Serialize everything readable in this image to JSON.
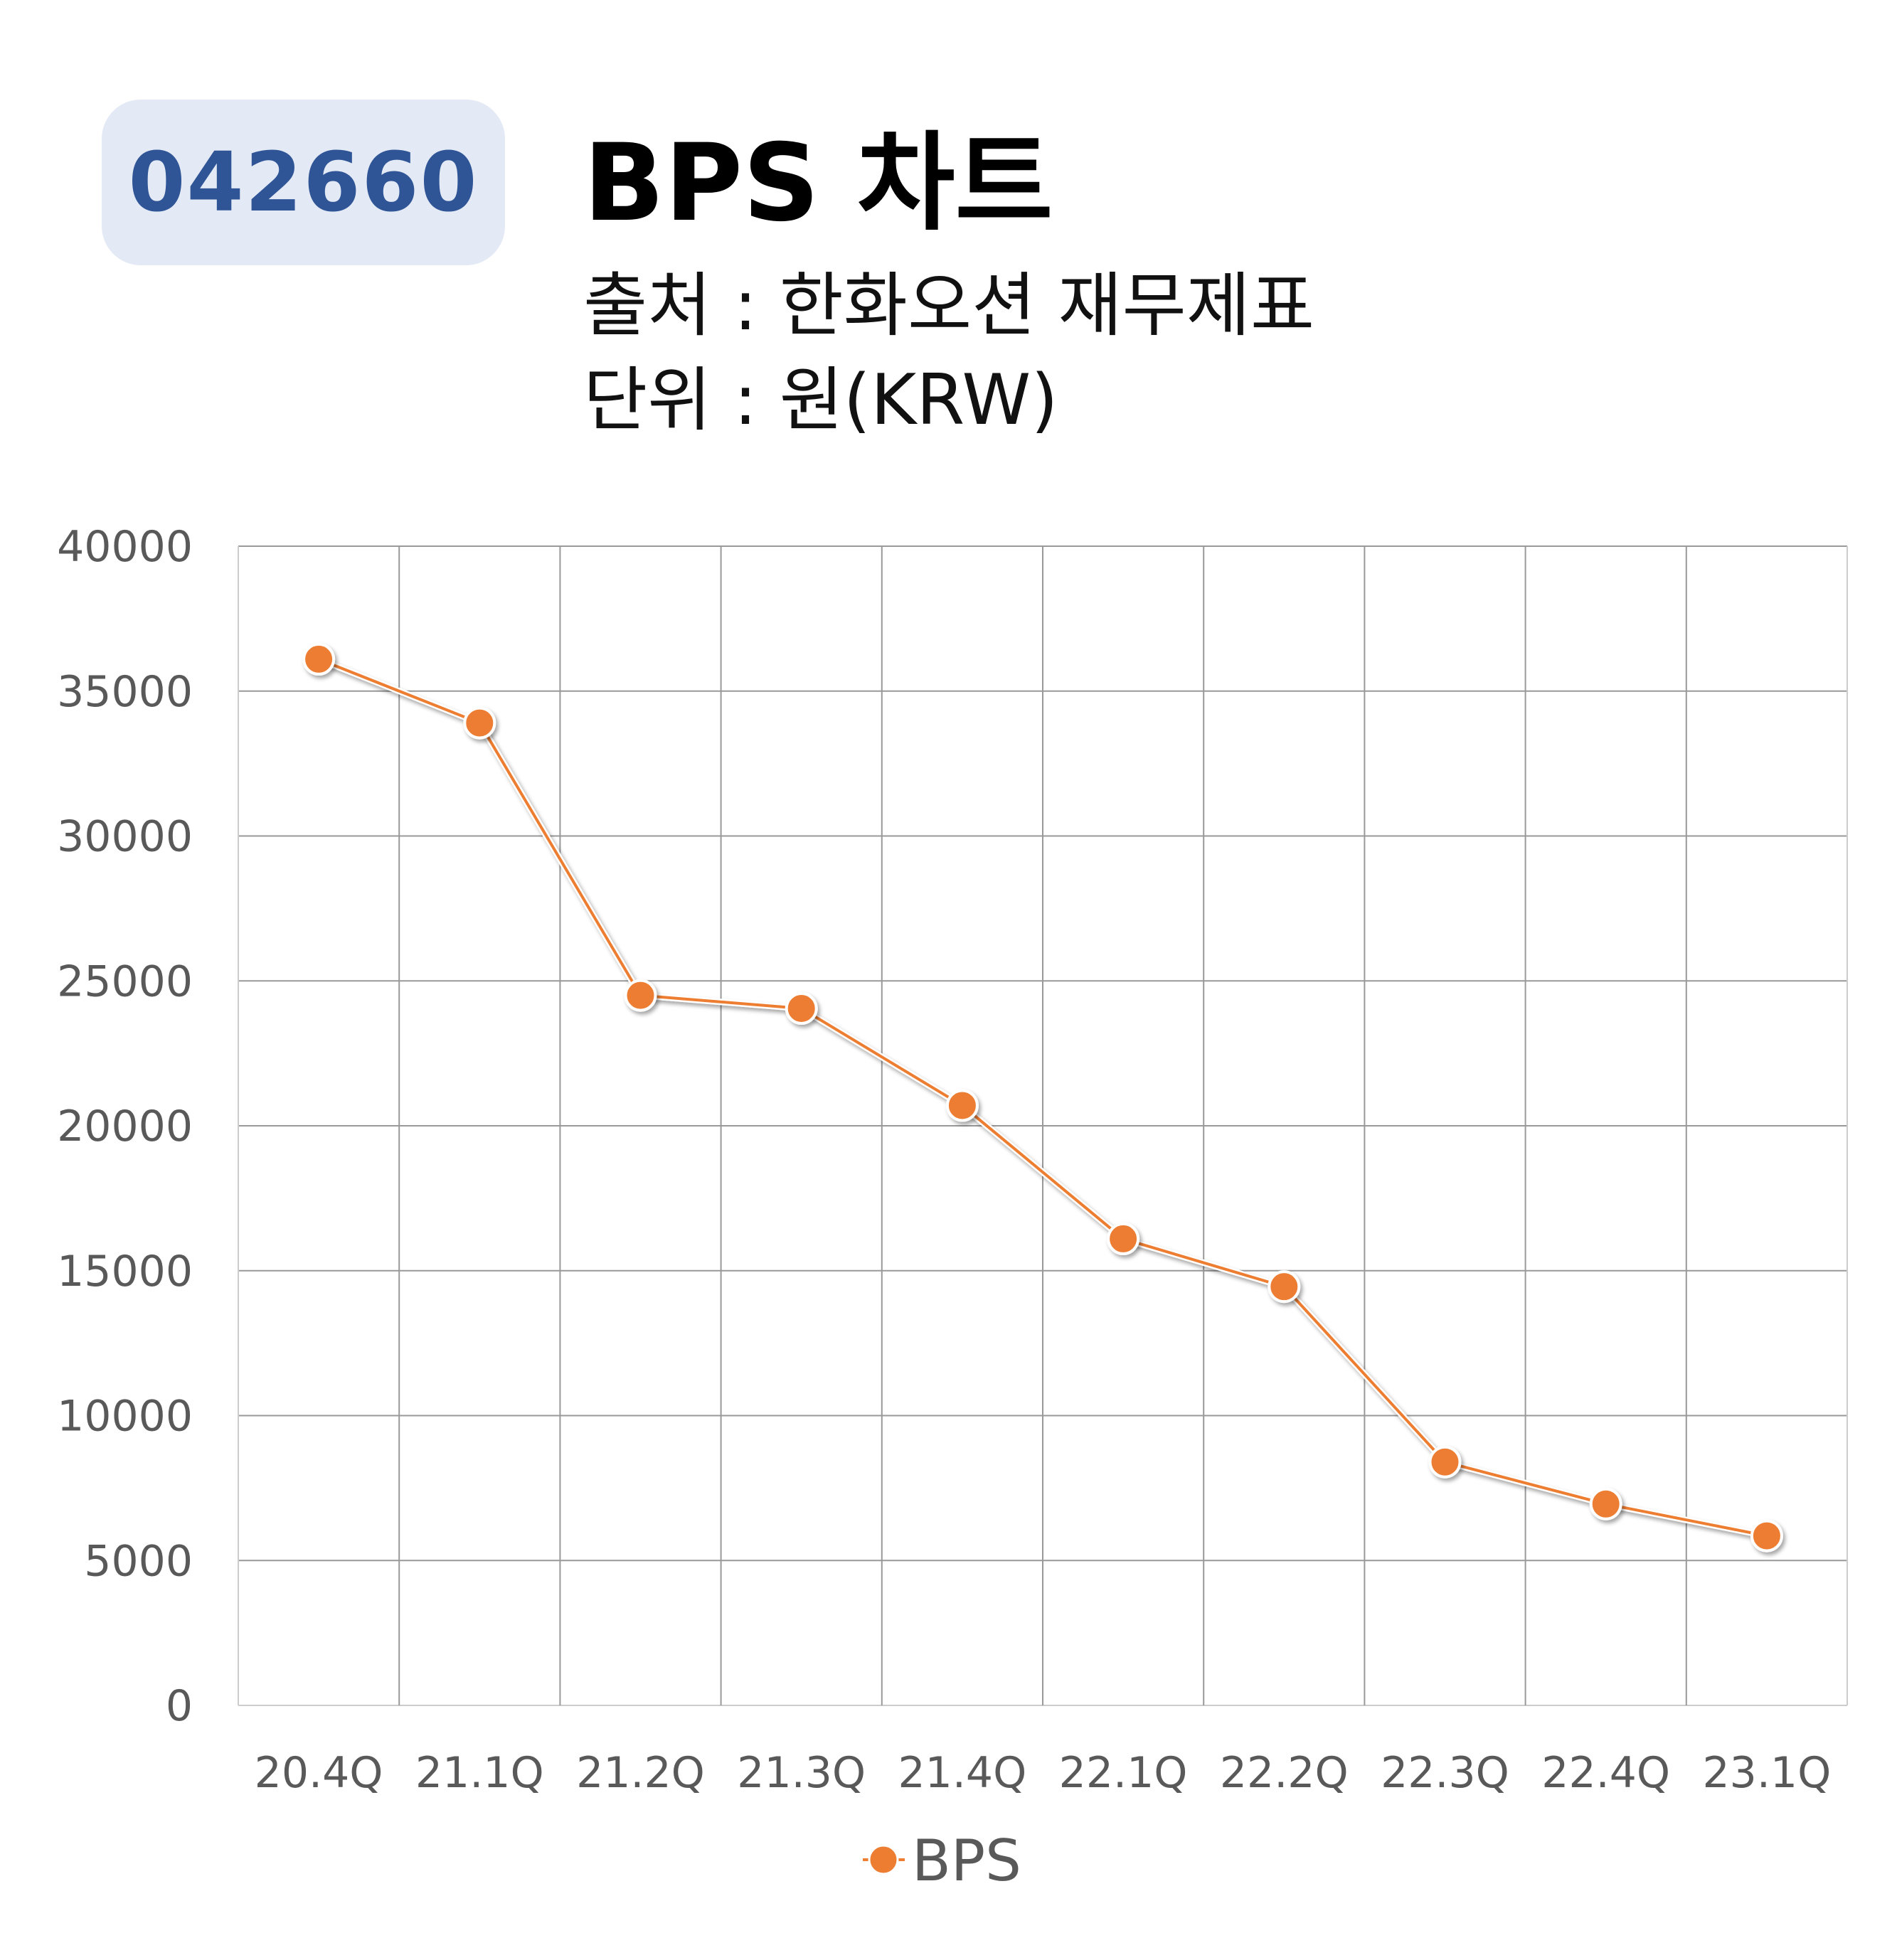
{
  "header": {
    "ticker": "042660",
    "title": "BPS 차트",
    "source": "출처 : 한화오션 재무제표",
    "unit": "단위 : 원(KRW)"
  },
  "colors": {
    "series": "#ed7d31",
    "grid": "#999999",
    "badge_bg": "#e3e9f5",
    "badge_text": "#2f5597"
  },
  "chart_data": {
    "type": "line",
    "categories": [
      "20.4Q",
      "21.1Q",
      "21.2Q",
      "21.3Q",
      "21.4Q",
      "22.1Q",
      "22.2Q",
      "22.3Q",
      "22.4Q",
      "23.1Q"
    ],
    "series": [
      {
        "name": "BPS",
        "values": [
          36100,
          33900,
          24500,
          24050,
          20700,
          16100,
          14450,
          8400,
          6950,
          5850
        ]
      }
    ],
    "y_ticks": [
      0,
      5000,
      10000,
      15000,
      20000,
      25000,
      30000,
      35000,
      40000
    ],
    "ylim": [
      0,
      40000
    ],
    "grid": true,
    "legend_position": "bottom"
  }
}
